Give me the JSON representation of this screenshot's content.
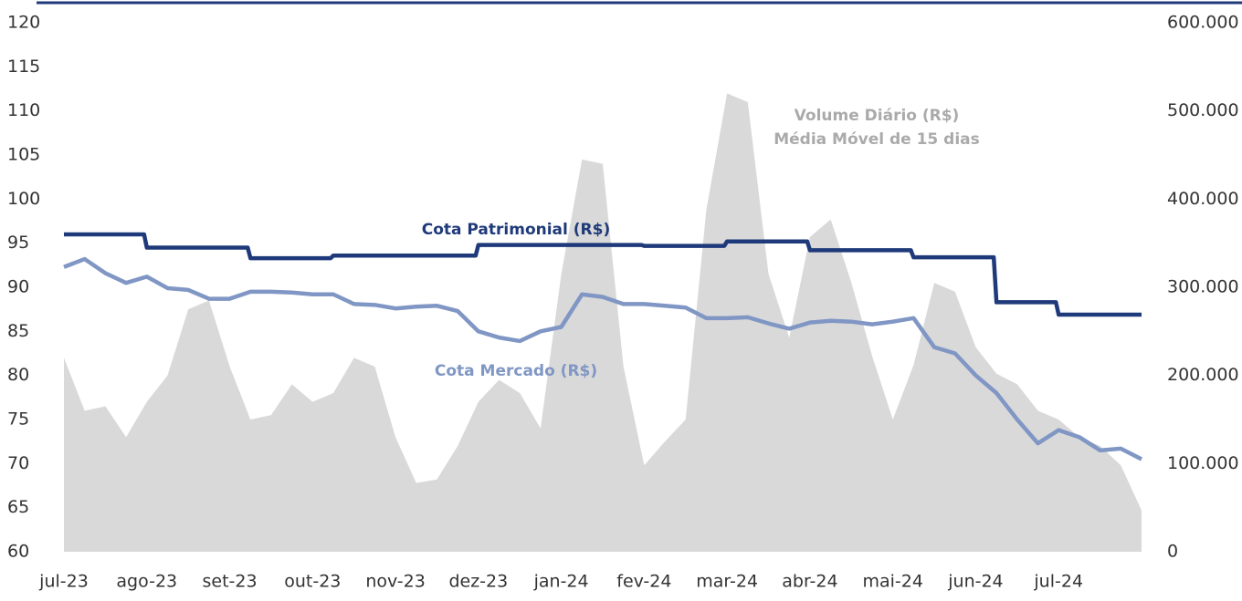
{
  "chart_data": {
    "type": "line",
    "categories": [
      "jul-23",
      null,
      null,
      null,
      "ago-23",
      null,
      null,
      null,
      "set-23",
      null,
      null,
      null,
      "out-23",
      null,
      null,
      null,
      "nov-23",
      null,
      null,
      null,
      "dez-23",
      null,
      null,
      null,
      "jan-24",
      null,
      null,
      null,
      "fev-24",
      null,
      null,
      null,
      "mar-24",
      null,
      null,
      null,
      "abr-24",
      null,
      null,
      null,
      "mai-24",
      null,
      null,
      null,
      "jun-24",
      null,
      null,
      null,
      "jul-24",
      null,
      null,
      null,
      null
    ],
    "series": [
      {
        "name": "Volume Diário (R$)",
        "type": "area",
        "axis": "y2",
        "color": "#d9d9d9",
        "values": [
          220000,
          160000,
          165000,
          130000,
          170000,
          200000,
          275000,
          285000,
          210000,
          150000,
          155000,
          190000,
          170000,
          180000,
          220000,
          210000,
          130000,
          78000,
          82000,
          120000,
          170000,
          195000,
          180000,
          140000,
          315000,
          445000,
          440000,
          210000,
          98000,
          125000,
          150000,
          388000,
          520000,
          510000,
          315000,
          243000,
          357000,
          377000,
          305000,
          222000,
          150000,
          212000,
          305000,
          295000,
          232000,
          202000,
          190000,
          160000,
          150000,
          130000,
          120000,
          98000,
          47000
        ]
      },
      {
        "name": "Cota Patrimonial (R$)",
        "type": "step",
        "color": "#1f3a7a",
        "values": [
          96,
          96,
          96,
          96,
          94.5,
          94.5,
          94.5,
          94.5,
          94.5,
          93.3,
          93.3,
          93.3,
          93.3,
          93.6,
          93.6,
          93.6,
          93.6,
          93.6,
          93.6,
          93.6,
          94.8,
          94.8,
          94.8,
          94.8,
          94.8,
          94.8,
          94.8,
          94.8,
          94.7,
          94.7,
          94.7,
          94.7,
          95.2,
          95.2,
          95.2,
          95.2,
          94.2,
          94.2,
          94.2,
          94.2,
          94.2,
          93.4,
          93.4,
          93.4,
          93.4,
          88.3,
          88.3,
          88.3,
          86.9,
          86.9,
          86.9,
          86.9,
          86.9
        ]
      },
      {
        "name": "Cota Mercado (R$)",
        "type": "line",
        "color": "#8096c4",
        "values": [
          92.3,
          93.2,
          91.6,
          90.5,
          91.2,
          89.9,
          89.7,
          88.7,
          88.7,
          89.5,
          89.5,
          89.4,
          89.2,
          89.2,
          88.1,
          88.0,
          87.6,
          87.8,
          87.9,
          87.3,
          85.0,
          84.3,
          83.9,
          85.0,
          85.5,
          89.2,
          88.9,
          88.1,
          88.1,
          87.9,
          87.7,
          86.5,
          86.5,
          86.6,
          85.9,
          85.3,
          86.0,
          86.2,
          86.1,
          85.8,
          86.1,
          86.5,
          83.2,
          82.5,
          80.0,
          78.0,
          75.0,
          72.3,
          73.8,
          73.0,
          71.5,
          71.7,
          70.5
        ]
      }
    ],
    "annotations": [
      "Volume Diário (R$)",
      "Média Móvel de 15 dias"
    ],
    "ylim": [
      60,
      120
    ],
    "yticks": [
      60,
      65,
      70,
      75,
      80,
      85,
      90,
      95,
      100,
      105,
      110,
      115,
      120
    ],
    "y2lim": [
      0,
      600000
    ],
    "y2ticks": [
      0,
      {
        "value": 100000,
        "label": "100.000"
      },
      {
        "value": 200000,
        "label": "200.000"
      },
      {
        "value": 300000,
        "label": "300.000"
      },
      {
        "value": 400000,
        "label": "400.000"
      },
      {
        "value": 500000,
        "label": "500.000"
      },
      {
        "value": 600000,
        "label": "600.000"
      }
    ]
  }
}
